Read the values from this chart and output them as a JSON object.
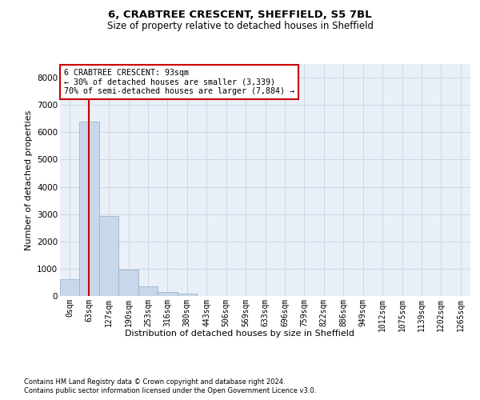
{
  "title1": "6, CRABTREE CRESCENT, SHEFFIELD, S5 7BL",
  "title2": "Size of property relative to detached houses in Sheffield",
  "xlabel": "Distribution of detached houses by size in Sheffield",
  "ylabel": "Number of detached properties",
  "bar_labels": [
    "0sqm",
    "63sqm",
    "127sqm",
    "190sqm",
    "253sqm",
    "316sqm",
    "380sqm",
    "443sqm",
    "506sqm",
    "569sqm",
    "633sqm",
    "696sqm",
    "759sqm",
    "822sqm",
    "886sqm",
    "949sqm",
    "1012sqm",
    "1075sqm",
    "1139sqm",
    "1202sqm",
    "1265sqm"
  ],
  "bar_values": [
    620,
    6380,
    2930,
    960,
    360,
    150,
    80,
    0,
    0,
    0,
    0,
    0,
    0,
    0,
    0,
    0,
    0,
    0,
    0,
    0,
    0
  ],
  "bar_color": "#c8d8ea",
  "bar_edge_color": "#9ab4cc",
  "vline_color": "#cc0000",
  "vline_x": 0.575,
  "annotation_text": "6 CRABTREE CRESCENT: 93sqm\n← 30% of detached houses are smaller (3,339)\n70% of semi-detached houses are larger (7,884) →",
  "annotation_box_edge": "#cc0000",
  "ylim_max": 8500,
  "yticks": [
    0,
    1000,
    2000,
    3000,
    4000,
    5000,
    6000,
    7000,
    8000
  ],
  "grid_color": "#ccd8e8",
  "bg_color": "#eaf0f8",
  "footer1": "Contains HM Land Registry data © Crown copyright and database right 2024.",
  "footer2": "Contains public sector information licensed under the Open Government Licence v3.0."
}
